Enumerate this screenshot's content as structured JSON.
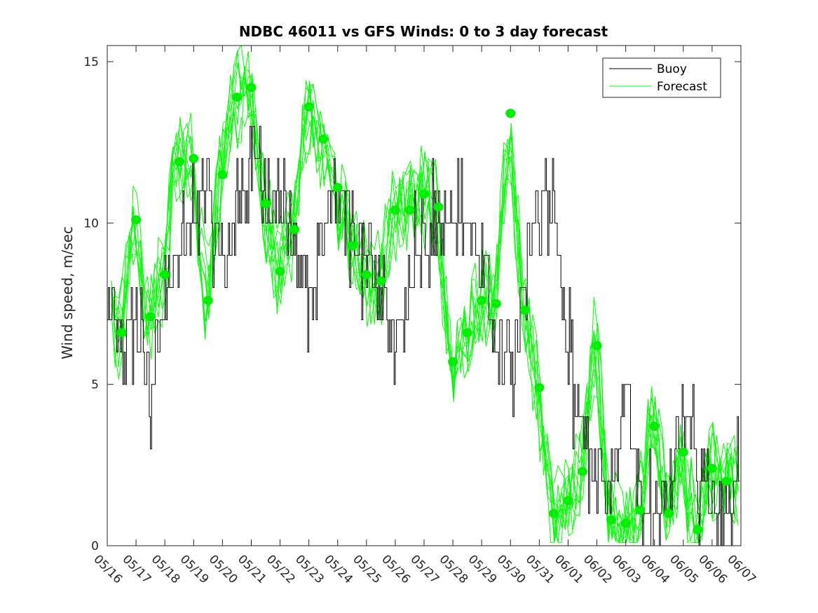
{
  "chart_data": {
    "type": "line",
    "title": "NDBC 46011 vs GFS Winds: 0 to 3 day forecast",
    "xlabel": "",
    "ylabel": "Wind speed, m/sec",
    "xlim": [
      "05/16",
      "06/07"
    ],
    "ylim": [
      0,
      15.5
    ],
    "y_ticks": [
      0,
      5,
      10,
      15
    ],
    "x_tick_labels": [
      "05/16",
      "05/17",
      "05/18",
      "05/19",
      "05/20",
      "05/21",
      "05/22",
      "05/23",
      "05/24",
      "05/25",
      "05/26",
      "05/27",
      "05/28",
      "05/29",
      "05/30",
      "05/31",
      "06/01",
      "06/02",
      "06/03",
      "06/04",
      "06/05",
      "06/06",
      "06/07"
    ],
    "grid": false,
    "legend": {
      "position": "top-right",
      "entries": [
        "Buoy",
        "Forecast"
      ]
    },
    "colors": {
      "buoy": "#000000",
      "forecast": "#00ff00",
      "marker": "#00ee00"
    },
    "series": [
      {
        "name": "Buoy",
        "x_days": [
          0,
          0.5,
          1,
          1.5,
          2,
          2.5,
          3,
          3.5,
          4,
          4.5,
          5,
          5.5,
          6,
          6.5,
          7,
          7.5,
          8,
          8.5,
          9,
          9.5,
          10,
          10.5,
          11,
          11.5,
          12,
          12.5,
          13,
          13.5,
          14,
          14.5,
          15,
          15.5,
          16,
          16.5,
          17,
          17.5,
          18,
          18.5,
          19,
          19.5,
          20,
          20.5,
          21,
          21.5,
          22
        ],
        "values": [
          8,
          6,
          7,
          5,
          8,
          9,
          10,
          11,
          9,
          10,
          12,
          11,
          10,
          9,
          8,
          10,
          11,
          10,
          9,
          8,
          6,
          8,
          9,
          10,
          10,
          10,
          9,
          6,
          5,
          8,
          10,
          11,
          6,
          4,
          2,
          2,
          5,
          1,
          1,
          2,
          4,
          2,
          1.5,
          1,
          2
        ]
      },
      {
        "name": "Forecast",
        "x_days": [
          0.5,
          1,
          1.5,
          2,
          2.5,
          3,
          3.5,
          4,
          4.5,
          5,
          5.5,
          6,
          6.5,
          7,
          7.5,
          8,
          8.5,
          9,
          9.5,
          10,
          10.5,
          11,
          11.5,
          12,
          12.5,
          13,
          13.5,
          14,
          14.5,
          15,
          15.5,
          16,
          16.5,
          17,
          17.5,
          18,
          18.5,
          19,
          19.5,
          20,
          20.5,
          21,
          21.5
        ],
        "values": [
          6.6,
          10.1,
          7.1,
          8.4,
          11.9,
          12,
          7.6,
          11.5,
          13.9,
          14.2,
          10.6,
          8.5,
          9.8,
          13.6,
          12.6,
          11.1,
          9.3,
          8.4,
          8.2,
          10.4,
          10.4,
          10.9,
          10.5,
          5.7,
          6.6,
          7.6,
          7.5,
          13.4,
          7.3,
          4.9,
          1,
          1.4,
          2.3,
          6.2,
          0.8,
          0.7,
          1.1,
          3.7,
          1,
          2.9,
          0.5,
          2.4,
          2
        ]
      }
    ]
  }
}
